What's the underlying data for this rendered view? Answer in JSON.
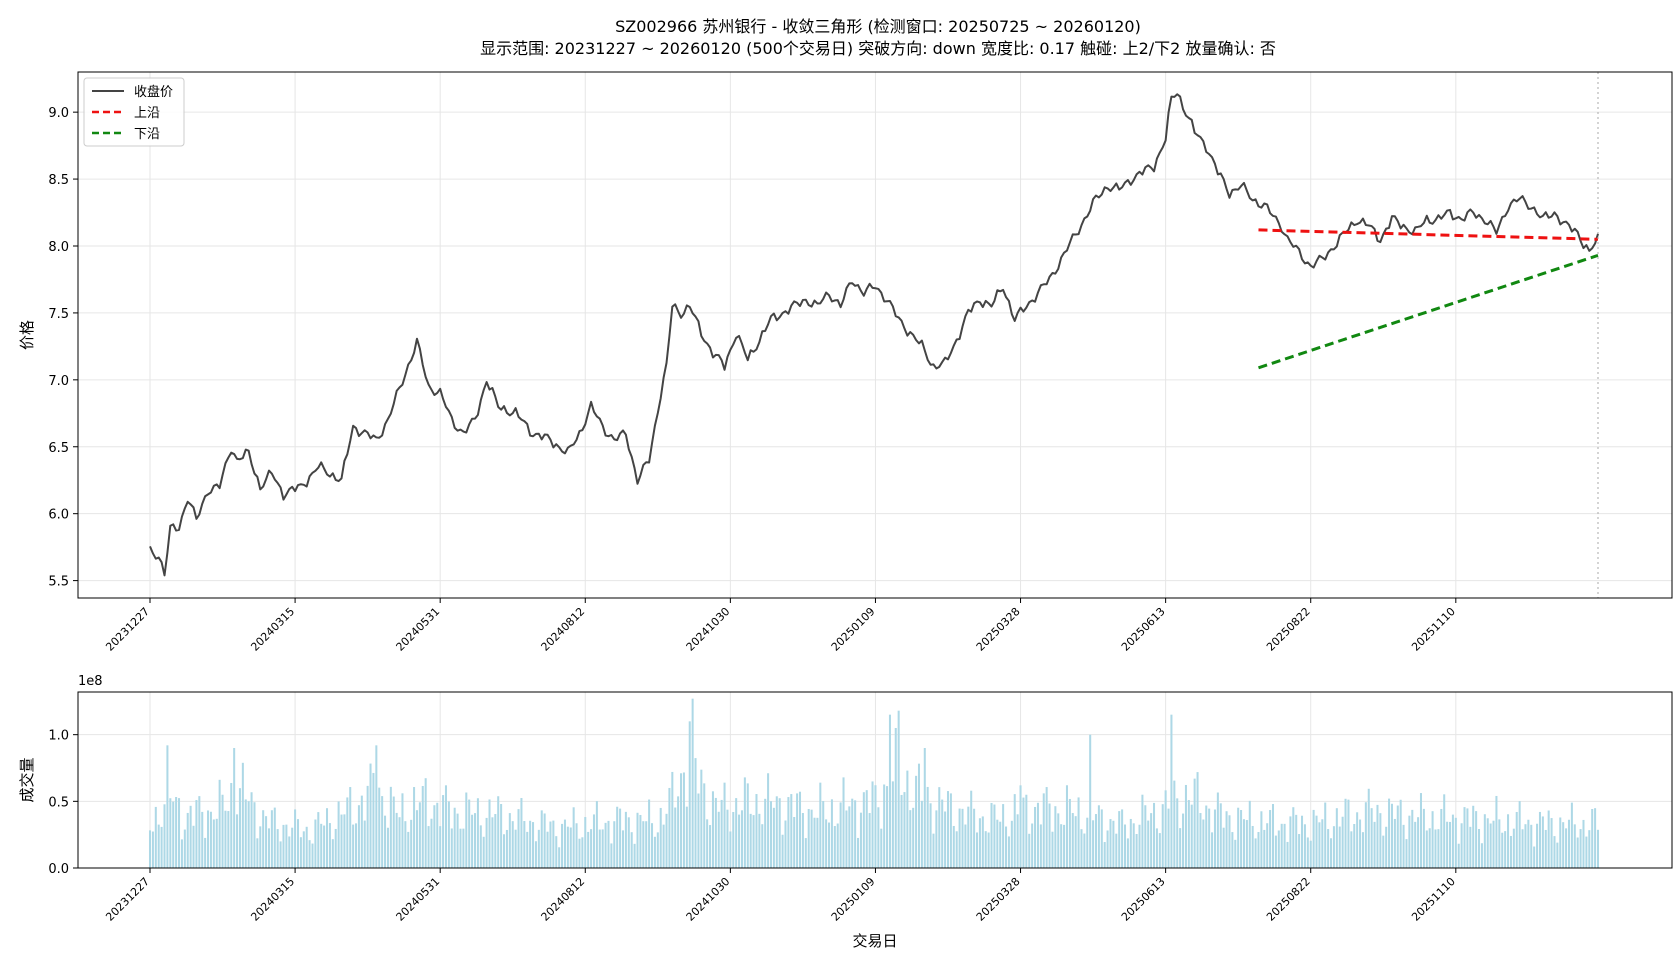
{
  "title_line1": "SZ002966 苏州银行 - 收敛三角形 (检测窗口: 20250725 ~ 20260120)",
  "title_line2": "显示范围: 20231227 ~ 20260120 (500个交易日) 突破方向: down 宽度比: 0.17 触碰: 上2/下2 放量确认: 否",
  "chart_data": [
    {
      "type": "line",
      "ylabel": "价格",
      "ylim": [
        5.37,
        9.3
      ],
      "yticks": [
        "5.5",
        "6.0",
        "6.5",
        "7.0",
        "7.5",
        "8.0",
        "8.5",
        "9.0"
      ],
      "ytick_values": [
        5.5,
        6.0,
        6.5,
        7.0,
        7.5,
        8.0,
        8.5,
        9.0
      ],
      "x_count": 500,
      "xticks": [
        {
          "label": "20231227",
          "index": 0
        },
        {
          "label": "20240315",
          "index": 50
        },
        {
          "label": "20240531",
          "index": 100
        },
        {
          "label": "20240812",
          "index": 150
        },
        {
          "label": "20241030",
          "index": 200
        },
        {
          "label": "20250109",
          "index": 250
        },
        {
          "label": "20250328",
          "index": 300
        },
        {
          "label": "20250613",
          "index": 350
        },
        {
          "label": "20250822",
          "index": 400
        },
        {
          "label": "20251110",
          "index": 450
        }
      ],
      "grid": true,
      "legend_position": "top-left",
      "series": [
        {
          "name": "收盘价",
          "color": "#444444",
          "style": "solid",
          "anchors": [
            [
              0,
              5.72
            ],
            [
              3,
              5.69
            ],
            [
              5,
              5.55
            ],
            [
              7,
              5.88
            ],
            [
              10,
              5.9
            ],
            [
              13,
              6.12
            ],
            [
              16,
              5.95
            ],
            [
              20,
              6.18
            ],
            [
              24,
              6.2
            ],
            [
              28,
              6.5
            ],
            [
              30,
              6.4
            ],
            [
              34,
              6.45
            ],
            [
              38,
              6.2
            ],
            [
              42,
              6.3
            ],
            [
              46,
              6.15
            ],
            [
              52,
              6.2
            ],
            [
              58,
              6.35
            ],
            [
              62,
              6.3
            ],
            [
              66,
              6.25
            ],
            [
              70,
              6.65
            ],
            [
              74,
              6.6
            ],
            [
              78,
              6.55
            ],
            [
              82,
              6.7
            ],
            [
              88,
              7.05
            ],
            [
              92,
              7.28
            ],
            [
              96,
              6.95
            ],
            [
              100,
              6.9
            ],
            [
              104,
              6.7
            ],
            [
              108,
              6.6
            ],
            [
              112,
              6.7
            ],
            [
              116,
              7.0
            ],
            [
              120,
              6.8
            ],
            [
              126,
              6.75
            ],
            [
              132,
              6.6
            ],
            [
              138,
              6.55
            ],
            [
              144,
              6.45
            ],
            [
              148,
              6.6
            ],
            [
              152,
              6.8
            ],
            [
              156,
              6.65
            ],
            [
              160,
              6.55
            ],
            [
              164,
              6.6
            ],
            [
              168,
              6.25
            ],
            [
              172,
              6.4
            ],
            [
              176,
              6.9
            ],
            [
              178,
              7.1
            ],
            [
              180,
              7.55
            ],
            [
              183,
              7.5
            ],
            [
              186,
              7.55
            ],
            [
              190,
              7.35
            ],
            [
              194,
              7.2
            ],
            [
              198,
              7.1
            ],
            [
              202,
              7.35
            ],
            [
              206,
              7.15
            ],
            [
              210,
              7.3
            ],
            [
              214,
              7.45
            ],
            [
              218,
              7.5
            ],
            [
              222,
              7.55
            ],
            [
              226,
              7.6
            ],
            [
              230,
              7.55
            ],
            [
              234,
              7.65
            ],
            [
              238,
              7.55
            ],
            [
              242,
              7.75
            ],
            [
              246,
              7.65
            ],
            [
              250,
              7.7
            ],
            [
              254,
              7.6
            ],
            [
              258,
              7.45
            ],
            [
              262,
              7.35
            ],
            [
              266,
              7.25
            ],
            [
              270,
              7.1
            ],
            [
              274,
              7.12
            ],
            [
              278,
              7.3
            ],
            [
              282,
              7.5
            ],
            [
              286,
              7.6
            ],
            [
              290,
              7.55
            ],
            [
              294,
              7.7
            ],
            [
              298,
              7.45
            ],
            [
              302,
              7.55
            ],
            [
              306,
              7.65
            ],
            [
              310,
              7.75
            ],
            [
              314,
              7.9
            ],
            [
              318,
              8.05
            ],
            [
              322,
              8.2
            ],
            [
              326,
              8.35
            ],
            [
              330,
              8.45
            ],
            [
              334,
              8.42
            ],
            [
              338,
              8.5
            ],
            [
              342,
              8.55
            ],
            [
              346,
              8.6
            ],
            [
              348,
              8.7
            ],
            [
              350,
              8.8
            ],
            [
              352,
              9.1
            ],
            [
              354,
              9.15
            ],
            [
              356,
              9.05
            ],
            [
              360,
              8.85
            ],
            [
              364,
              8.75
            ],
            [
              368,
              8.55
            ],
            [
              372,
              8.4
            ],
            [
              376,
              8.45
            ],
            [
              380,
              8.35
            ],
            [
              384,
              8.3
            ],
            [
              388,
              8.2
            ],
            [
              390,
              8.15
            ],
            [
              392,
              8.05
            ],
            [
              396,
              7.95
            ],
            [
              400,
              7.85
            ],
            [
              404,
              7.9
            ],
            [
              408,
              8.0
            ],
            [
              412,
              8.1
            ],
            [
              416,
              8.2
            ],
            [
              420,
              8.15
            ],
            [
              424,
              8.05
            ],
            [
              428,
              8.2
            ],
            [
              432,
              8.15
            ],
            [
              436,
              8.1
            ],
            [
              440,
              8.2
            ],
            [
              444,
              8.2
            ],
            [
              448,
              8.25
            ],
            [
              452,
              8.2
            ],
            [
              456,
              8.25
            ],
            [
              460,
              8.2
            ],
            [
              464,
              8.1
            ],
            [
              468,
              8.3
            ],
            [
              472,
              8.35
            ],
            [
              476,
              8.3
            ],
            [
              480,
              8.2
            ],
            [
              484,
              8.25
            ],
            [
              488,
              8.15
            ],
            [
              492,
              8.1
            ],
            [
              496,
              7.95
            ],
            [
              499,
              8.05
            ]
          ]
        },
        {
          "name": "上沿",
          "color": "#ee1111",
          "style": "dashed",
          "points": [
            [
              382,
              8.12
            ],
            [
              499,
              8.05
            ]
          ]
        },
        {
          "name": "下沿",
          "color": "#118811",
          "style": "dashed",
          "points": [
            [
              382,
              7.09
            ],
            [
              499,
              7.93
            ]
          ]
        }
      ]
    },
    {
      "type": "bar",
      "ylabel": "成交量",
      "xlabel": "交易日",
      "scale_label": "1e8",
      "ylim": [
        0,
        1.32
      ],
      "yticks": [
        "0.0",
        "0.5",
        "1.0"
      ],
      "ytick_values": [
        0.0,
        0.5,
        1.0
      ],
      "bar_color": "#add8e6",
      "volume_profile": [
        [
          0,
          0.3
        ],
        [
          6,
          0.55
        ],
        [
          12,
          0.38
        ],
        [
          25,
          0.45
        ],
        [
          30,
          0.6
        ],
        [
          40,
          0.35
        ],
        [
          55,
          0.28
        ],
        [
          70,
          0.45
        ],
        [
          78,
          0.6
        ],
        [
          85,
          0.4
        ],
        [
          95,
          0.5
        ],
        [
          105,
          0.42
        ],
        [
          120,
          0.4
        ],
        [
          140,
          0.3
        ],
        [
          160,
          0.35
        ],
        [
          175,
          0.35
        ],
        [
          180,
          0.5
        ],
        [
          185,
          0.82
        ],
        [
          190,
          0.62
        ],
        [
          195,
          0.45
        ],
        [
          210,
          0.5
        ],
        [
          230,
          0.42
        ],
        [
          250,
          0.5
        ],
        [
          258,
          0.72
        ],
        [
          265,
          0.55
        ],
        [
          275,
          0.45
        ],
        [
          290,
          0.36
        ],
        [
          305,
          0.45
        ],
        [
          320,
          0.42
        ],
        [
          335,
          0.32
        ],
        [
          350,
          0.45
        ],
        [
          358,
          0.55
        ],
        [
          370,
          0.38
        ],
        [
          385,
          0.34
        ],
        [
          400,
          0.33
        ],
        [
          420,
          0.42
        ],
        [
          440,
          0.38
        ],
        [
          460,
          0.36
        ],
        [
          480,
          0.33
        ],
        [
          499,
          0.33
        ]
      ],
      "spikes": [
        [
          6,
          0.92
        ],
        [
          29,
          0.9
        ],
        [
          78,
          0.92
        ],
        [
          186,
          1.1
        ],
        [
          187,
          1.27
        ],
        [
          255,
          1.15
        ],
        [
          258,
          1.18
        ],
        [
          267,
          0.9
        ],
        [
          352,
          1.15
        ],
        [
          324,
          1.0
        ],
        [
          300,
          0.62
        ]
      ]
    }
  ]
}
